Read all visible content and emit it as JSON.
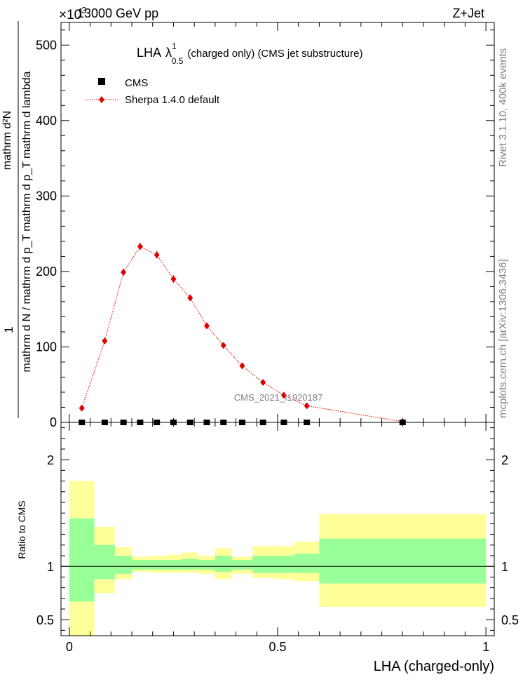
{
  "header": {
    "energy_label": "13000 GeV pp",
    "process_label": "Z+Jet",
    "exponent_label": "×10",
    "exponent_power": "3"
  },
  "plot_title": {
    "prefix": "LHA",
    "lambda": "λ",
    "lambda_sup": "1",
    "lambda_sub": "0.5",
    "suffix": "(charged only) (CMS jet substructure)"
  },
  "side_labels": {
    "rivet": "Rivet 3.1.10,  400k events",
    "mcplots": "mcplots.cern.ch [arXiv:1306.3436]"
  },
  "watermark": "CMS_2021_I1920187",
  "legend": {
    "cms": "CMS",
    "sherpa": "Sherpa 1.4.0 default"
  },
  "ylabel_main": {
    "numerator_one": "1",
    "numerator_line": "mathrm d²N",
    "denominator_line": "mathrm d N / mathrm d p_T mathrm d p_T mathrm d lambda"
  },
  "ylabel_ratio": "Ratio to CMS",
  "xlabel": "LHA (charged-only)",
  "colors": {
    "sherpa": "#e00000",
    "band_inner": "#99ff99",
    "band_outer": "#ffff99",
    "cms": "#000000"
  },
  "chart_data": {
    "type": "scatter",
    "xlim": [
      -0.02,
      1.02
    ],
    "ylim_main": [
      0,
      530
    ],
    "ylim_ratio": [
      0.35,
      2.35
    ],
    "y_scale_note": "main axis values ×10^3",
    "main_yticks": [
      "0",
      "100",
      "200",
      "300",
      "400",
      "500"
    ],
    "main_ytick_values": [
      0,
      100,
      200,
      300,
      400,
      500
    ],
    "xticks": [
      "0",
      "0.5",
      "1"
    ],
    "xtick_values": [
      0,
      0.5,
      1
    ],
    "ratio_yticks": [
      "0.5",
      "1",
      "2"
    ],
    "ratio_ytick_values": [
      0.5,
      1,
      2
    ],
    "bins": [
      [
        0.0,
        0.06
      ],
      [
        0.06,
        0.11
      ],
      [
        0.11,
        0.15
      ],
      [
        0.15,
        0.19
      ],
      [
        0.19,
        0.23
      ],
      [
        0.23,
        0.27
      ],
      [
        0.27,
        0.31
      ],
      [
        0.31,
        0.35
      ],
      [
        0.35,
        0.39
      ],
      [
        0.39,
        0.44
      ],
      [
        0.44,
        0.49
      ],
      [
        0.49,
        0.54
      ],
      [
        0.54,
        0.6
      ],
      [
        0.6,
        1.0
      ]
    ],
    "series": [
      {
        "name": "CMS",
        "x": [
          0.03,
          0.085,
          0.13,
          0.17,
          0.21,
          0.25,
          0.29,
          0.33,
          0.37,
          0.415,
          0.465,
          0.515,
          0.57,
          0.8
        ],
        "values": [
          0,
          0,
          0,
          0,
          0,
          0,
          0,
          0,
          0,
          0,
          0,
          0,
          0,
          0
        ]
      },
      {
        "name": "Sherpa 1.4.0 default",
        "x": [
          0.03,
          0.085,
          0.13,
          0.17,
          0.21,
          0.25,
          0.29,
          0.33,
          0.37,
          0.415,
          0.465,
          0.515,
          0.57,
          0.8
        ],
        "values": [
          19,
          108,
          199,
          233,
          222,
          190,
          165,
          128,
          102,
          75,
          53,
          36,
          22,
          1
        ],
        "errors": [
          3,
          4,
          5,
          5,
          5,
          5,
          4,
          4,
          4,
          3,
          2,
          2,
          2,
          1
        ]
      }
    ],
    "ratio_bands": [
      {
        "x0": 0.0,
        "x1": 0.06,
        "inner": [
          0.67,
          1.45
        ],
        "outer": [
          0.35,
          1.8
        ]
      },
      {
        "x0": 0.06,
        "x1": 0.11,
        "inner": [
          0.88,
          1.2
        ],
        "outer": [
          0.75,
          1.37
        ]
      },
      {
        "x0": 0.11,
        "x1": 0.15,
        "inner": [
          0.93,
          1.1
        ],
        "outer": [
          0.88,
          1.18
        ]
      },
      {
        "x0": 0.15,
        "x1": 0.19,
        "inner": [
          0.97,
          1.06
        ],
        "outer": [
          0.95,
          1.09
        ]
      },
      {
        "x0": 0.19,
        "x1": 0.23,
        "inner": [
          0.97,
          1.06
        ],
        "outer": [
          0.94,
          1.1
        ]
      },
      {
        "x0": 0.23,
        "x1": 0.27,
        "inner": [
          0.97,
          1.06
        ],
        "outer": [
          0.94,
          1.11
        ]
      },
      {
        "x0": 0.27,
        "x1": 0.31,
        "inner": [
          0.97,
          1.07
        ],
        "outer": [
          0.94,
          1.13
        ]
      },
      {
        "x0": 0.31,
        "x1": 0.35,
        "inner": [
          0.97,
          1.06
        ],
        "outer": [
          0.93,
          1.1
        ]
      },
      {
        "x0": 0.35,
        "x1": 0.39,
        "inner": [
          0.95,
          1.1
        ],
        "outer": [
          0.88,
          1.17
        ]
      },
      {
        "x0": 0.39,
        "x1": 0.44,
        "inner": [
          0.97,
          1.06
        ],
        "outer": [
          0.93,
          1.09
        ]
      },
      {
        "x0": 0.44,
        "x1": 0.49,
        "inner": [
          0.94,
          1.1
        ],
        "outer": [
          0.89,
          1.19
        ]
      },
      {
        "x0": 0.49,
        "x1": 0.54,
        "inner": [
          0.94,
          1.1
        ],
        "outer": [
          0.88,
          1.19
        ]
      },
      {
        "x0": 0.54,
        "x1": 0.6,
        "inner": [
          0.94,
          1.12
        ],
        "outer": [
          0.86,
          1.23
        ]
      },
      {
        "x0": 0.6,
        "x1": 1.0,
        "inner": [
          0.84,
          1.26
        ],
        "outer": [
          0.62,
          1.49
        ]
      }
    ]
  }
}
